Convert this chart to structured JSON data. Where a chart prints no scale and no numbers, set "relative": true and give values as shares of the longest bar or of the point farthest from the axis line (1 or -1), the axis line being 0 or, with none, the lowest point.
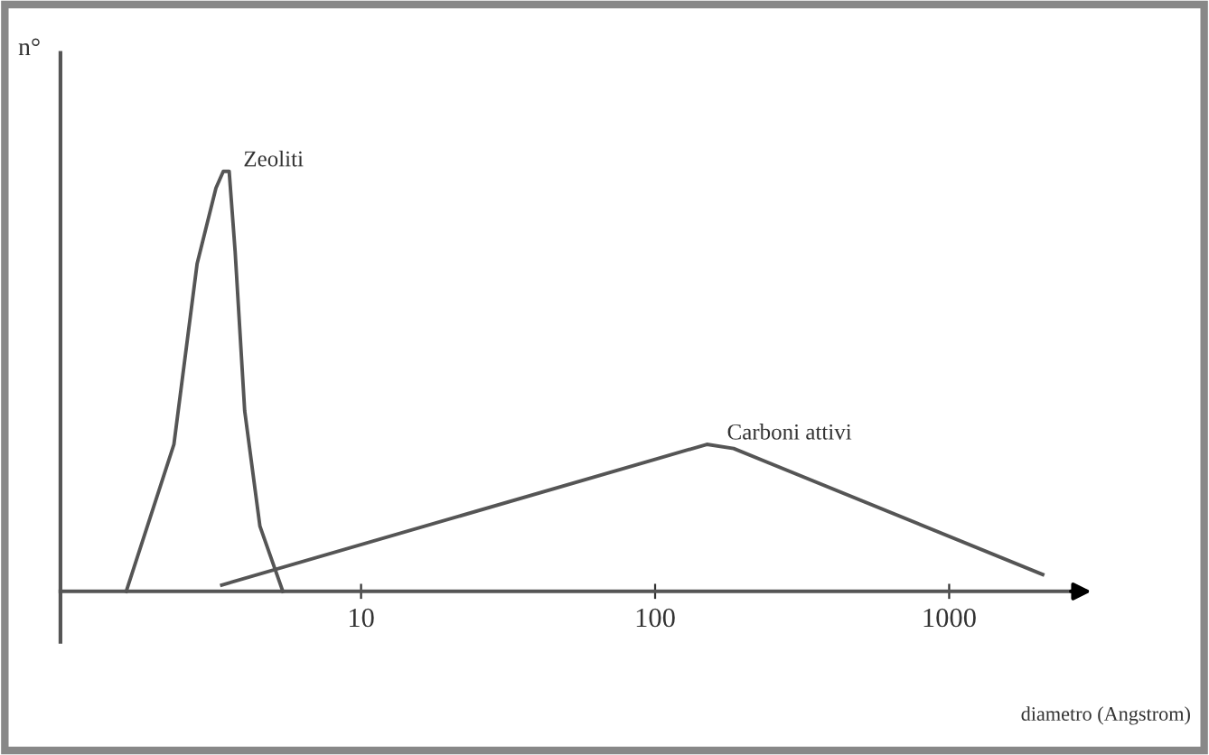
{
  "chart_data": {
    "type": "line",
    "relative": true,
    "log": "x",
    "xlabel": "diametro (Angstrom)",
    "ylabel": "n°",
    "xlim": [
      0.95,
      2700
    ],
    "xticks": [
      10,
      100,
      1000
    ],
    "tick_labels": "x",
    "legend": false,
    "grid": false,
    "marker": "none",
    "line_style": "solid",
    "series": [
      {
        "name": "Zeoliti",
        "color": "#555555",
        "x": [
          1.59,
          2.31,
          2.77,
          3.21,
          3.4,
          3.56,
          3.73,
          4.02,
          4.53,
          5.42
        ],
        "values": [
          0,
          0.35,
          0.78,
          0.96,
          1,
          1,
          0.81,
          0.43,
          0.155,
          0
        ]
      },
      {
        "name": "Carboni attivi",
        "color": "#555555",
        "x": [
          3.36,
          150,
          185,
          2080
        ],
        "values": [
          0.015,
          0.35,
          0.34,
          0.04
        ]
      }
    ]
  }
}
